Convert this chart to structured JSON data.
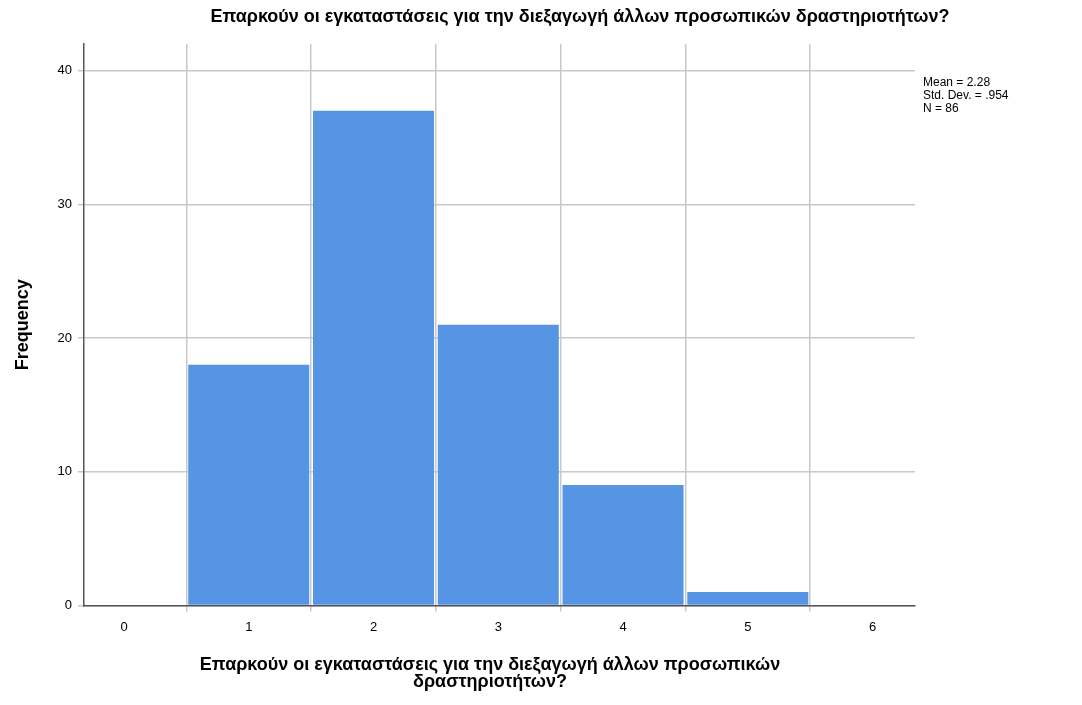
{
  "chart_data": {
    "type": "histogram",
    "title": "Επαρκούν οι εγκαταστάσεις για την διεξαγωγή άλλων προσωπικών δραστηριοτήτων?",
    "xlabel": "Επαρκούν οι εγκαταστάσεις για την διεξαγωγή άλλων προσωπικών δραστηριοτήτων?",
    "ylabel": "Frequency",
    "bins": [
      0.5,
      1.5,
      2.5,
      3.5,
      4.5,
      5.5
    ],
    "values": [
      18,
      37,
      21,
      9,
      1
    ],
    "color": "#5595e3",
    "xlim": [
      -0.32,
      6.34
    ],
    "xticks": [
      0,
      1,
      2,
      3,
      4,
      5,
      6
    ],
    "ylim": [
      0,
      42
    ],
    "yticks": [
      0,
      10,
      20,
      30,
      40
    ],
    "grid": true,
    "annotations": [
      "Mean = 2.28",
      "Std. Dev. = .954",
      "N = 86"
    ]
  }
}
